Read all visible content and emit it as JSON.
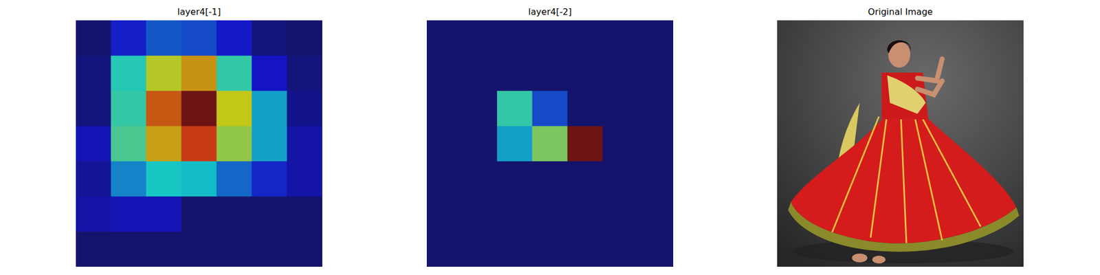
{
  "chart_data": [
    {
      "type": "heatmap",
      "title": "layer4[-1]",
      "tick_labels": false,
      "cells": [
        [
          0.0,
          0.14,
          0.22,
          0.2,
          0.13,
          0.02,
          0.0
        ],
        [
          0.02,
          0.4,
          0.6,
          0.7,
          0.42,
          0.12,
          0.02
        ],
        [
          0.02,
          0.42,
          0.78,
          1.0,
          0.62,
          0.32,
          0.04
        ],
        [
          0.1,
          0.45,
          0.68,
          0.82,
          0.55,
          0.32,
          0.08
        ],
        [
          0.06,
          0.28,
          0.38,
          0.36,
          0.24,
          0.15,
          0.08
        ],
        [
          0.08,
          0.1,
          0.1,
          0.0,
          0.0,
          0.0,
          0.0
        ],
        [
          0.0,
          0.0,
          0.0,
          0.0,
          0.0,
          0.0,
          0.0
        ]
      ]
    },
    {
      "type": "heatmap",
      "title": "layer4[-2]",
      "tick_labels": false,
      "cells": [
        [
          0.0,
          0.0,
          0.0,
          0.0,
          0.0,
          0.0,
          0.0
        ],
        [
          0.0,
          0.0,
          0.0,
          0.0,
          0.0,
          0.0,
          0.0
        ],
        [
          0.0,
          0.0,
          0.42,
          0.2,
          0.0,
          0.0,
          0.0
        ],
        [
          0.0,
          0.0,
          0.32,
          0.52,
          1.0,
          0.0,
          0.0
        ],
        [
          0.0,
          0.0,
          0.0,
          0.0,
          0.0,
          0.0,
          0.0
        ],
        [
          0.0,
          0.0,
          0.0,
          0.0,
          0.0,
          0.0,
          0.0
        ],
        [
          0.0,
          0.0,
          0.0,
          0.0,
          0.0,
          0.0,
          0.0
        ]
      ]
    }
  ],
  "image": {
    "title": "Original Image"
  }
}
